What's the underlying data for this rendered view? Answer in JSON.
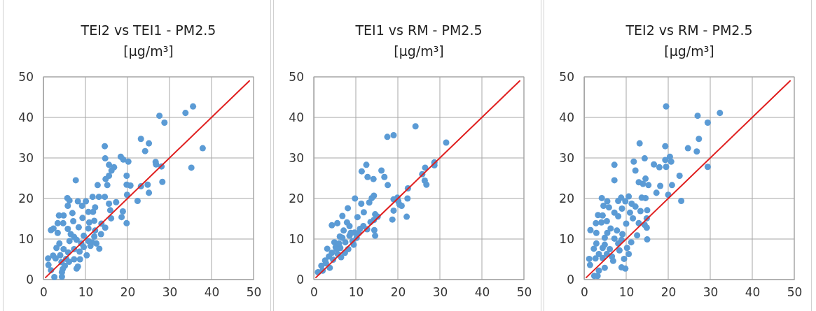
{
  "chart_data": [
    {
      "type": "scatter",
      "title": "TEI2 vs TEI1 - PM2.5",
      "subtitle": "[µg/m³]",
      "xlim": [
        0,
        50
      ],
      "ylim": [
        0,
        50
      ],
      "xticks": [
        0,
        10,
        20,
        30,
        40,
        50
      ],
      "yticks": [
        0,
        10,
        20,
        30,
        40,
        50
      ],
      "grid": true,
      "series": [
        {
          "marker": "circle",
          "color": "#5b9bd5",
          "x": [
            35.6,
            33.8,
            27.6,
            28.8,
            23.2,
            25.1,
            24.2,
            37.9,
            14.6,
            14.7,
            18.4,
            19.0,
            20.2,
            26.7,
            26.8,
            28.1,
            35.2,
            15.6,
            16.8,
            16.2,
            15.6,
            14.8,
            19.8,
            7.7,
            28.3,
            19.8,
            20.7,
            15.2,
            12.9,
            23.2,
            24.8,
            25.1,
            19.9,
            22.4,
            17.3,
            15.6,
            13.2,
            14.6,
            11.7,
            5.7,
            6.2,
            8.2,
            10.1,
            9.2,
            5.8,
            12.3,
            15.9,
            18.9,
            10.7,
            11.8,
            6.9,
            3.7,
            4.8,
            9.3,
            16.1,
            18.6,
            19.8,
            3.4,
            4.7,
            10.9,
            12.1,
            13.8,
            7.1,
            1.8,
            2.4,
            5.8,
            8.4,
            10.7,
            12.3,
            14.7,
            3.4,
            6.5,
            13.7,
            7.3,
            9.6,
            12.1,
            6.2,
            7.9,
            10.7,
            9.0,
            12.6,
            3.8,
            9.6,
            11.2,
            13.3,
            3.1,
            4.8,
            7.3,
            8.6,
            5.9,
            2.3,
            4.0,
            1.1,
            2.9,
            5.4,
            7.3,
            8.7,
            4.3,
            6.1,
            1.2,
            5.1,
            8.2,
            7.9,
            4.6,
            4.4,
            2.6,
            4.4,
            1.8,
            10.3,
            11.6
          ],
          "values": [
            42.7,
            41.1,
            40.4,
            38.7,
            34.7,
            33.6,
            31.7,
            32.4,
            32.9,
            29.9,
            30.3,
            29.6,
            29.1,
            29.0,
            28.4,
            27.9,
            27.6,
            28.3,
            27.7,
            26.9,
            25.6,
            24.8,
            25.6,
            24.5,
            24.1,
            23.4,
            23.2,
            23.3,
            23.3,
            23.0,
            23.4,
            21.4,
            20.9,
            19.4,
            19.1,
            18.7,
            20.4,
            20.4,
            20.4,
            20.1,
            19.5,
            19.3,
            19.3,
            18.2,
            18.2,
            17.8,
            17.1,
            16.8,
            16.7,
            16.7,
            16.4,
            15.8,
            15.8,
            15.2,
            15.1,
            15.4,
            13.9,
            13.9,
            13.9,
            14.1,
            14.5,
            13.8,
            14.4,
            12.2,
            12.6,
            12.5,
            12.9,
            12.6,
            12.1,
            12.8,
            11.5,
            11.2,
            11.2,
            10.5,
            10.8,
            10.6,
            9.5,
            9.8,
            9.5,
            8.9,
            8.9,
            8.9,
            8.0,
            8.3,
            7.6,
            7.8,
            7.5,
            7.5,
            6.9,
            6.7,
            5.9,
            6.0,
            5.2,
            5.2,
            5.1,
            5.0,
            5.0,
            4.3,
            4.4,
            3.6,
            3.4,
            3.2,
            2.7,
            2.6,
            1.8,
            0.6,
            0.7,
            2.3,
            6.0,
            9.2
          ]
        },
        {
          "type": "line",
          "color": "#e02020",
          "x": [
            0.5,
            49
          ],
          "values": [
            0.5,
            49
          ]
        }
      ]
    },
    {
      "type": "scatter",
      "title": "TEI1 vs RM - PM2.5",
      "subtitle": "[µg/m³]",
      "xlim": [
        0,
        50
      ],
      "ylim": [
        0,
        50
      ],
      "xticks": [
        0,
        10,
        20,
        30,
        40,
        50
      ],
      "yticks": [
        0,
        10,
        20,
        30,
        40,
        50
      ],
      "grid": true,
      "series": [
        {
          "marker": "circle",
          "color": "#5b9bd5",
          "x": [
            24.2,
            17.5,
            19.0,
            31.5,
            28.7,
            28.7,
            26.5,
            25.8,
            26.4,
            26.8,
            12.5,
            11.4,
            16.1,
            16.8,
            12.8,
            14.2,
            17.6,
            22.4,
            14.3,
            13.8,
            9.8,
            13.2,
            11.3,
            19.0,
            19.9,
            20.1,
            20.4,
            20.9,
            22.3,
            19.0,
            18.7,
            22.1,
            8.1,
            11.9,
            10.4,
            6.8,
            14.6,
            14.3,
            5.6,
            4.3,
            7.9,
            8.5,
            12.7,
            14.4,
            14.6,
            11.0,
            9.7,
            7.1,
            6.2,
            8.5,
            10.2,
            4.9,
            7.5,
            9.5,
            3.2,
            6.3,
            8.2,
            4.3,
            5.7,
            7.4,
            3.6,
            6.5,
            2.7,
            4.6,
            3.8,
            1.8,
            1.0,
            2.1,
            2.9,
            5.2,
            9.2,
            10.7,
            11.8,
            13.5,
            15.2,
            6.8,
            5.4,
            8.8,
            6.0
          ],
          "values": [
            37.8,
            35.2,
            35.6,
            33.8,
            28.9,
            28.2,
            27.6,
            26.0,
            24.4,
            23.4,
            28.3,
            26.7,
            26.9,
            25.3,
            25.3,
            24.8,
            23.3,
            22.5,
            20.7,
            20.1,
            20.0,
            19.0,
            18.7,
            19.8,
            20.2,
            19.3,
            18.5,
            18.2,
            20.0,
            17.0,
            14.8,
            15.5,
            17.6,
            16.6,
            15.4,
            15.7,
            16.1,
            14.7,
            13.9,
            13.4,
            14.1,
            13.2,
            12.4,
            12.2,
            10.8,
            12.5,
            11.6,
            12.1,
            10.6,
            10.8,
            10.3,
            9.2,
            9.2,
            8.6,
            7.6,
            7.8,
            7.5,
            6.6,
            6.3,
            6.6,
            5.7,
            5.5,
            4.7,
            4.9,
            2.9,
            3.4,
            1.8,
            2.2,
            4.0,
            8.0,
            9.5,
            11.5,
            13.2,
            14.2,
            15.5,
            10.3,
            7.5,
            11.5,
            8.9
          ]
        },
        {
          "type": "line",
          "color": "#e02020",
          "x": [
            0.5,
            49
          ],
          "values": [
            0.5,
            49
          ]
        }
      ]
    },
    {
      "type": "scatter",
      "title": "TEI2 vs RM - PM2.5",
      "subtitle": "[µg/m³]",
      "xlim": [
        0,
        50
      ],
      "ylim": [
        0,
        50
      ],
      "xticks": [
        0,
        10,
        20,
        30,
        40,
        50
      ],
      "yticks": [
        0,
        10,
        20,
        30,
        40,
        50
      ],
      "grid": true,
      "series": [
        {
          "marker": "circle",
          "color": "#5b9bd5",
          "x": [
            19.5,
            32.3,
            27.0,
            29.4,
            27.3,
            13.2,
            24.7,
            19.3,
            26.8,
            20.4,
            19.3,
            20.7,
            14.4,
            11.8,
            7.2,
            16.6,
            17.9,
            19.5,
            29.4,
            12.2,
            22.7,
            7.2,
            14.6,
            13.0,
            14.0,
            15.3,
            18.1,
            20.9,
            17.2,
            20.0,
            23.1,
            4.2,
            5.5,
            8.8,
            10.6,
            13.7,
            14.6,
            8.1,
            9.8,
            11.3,
            12.2,
            4.6,
            5.9,
            9.0,
            13.4,
            15.0,
            7.2,
            10.9,
            3.3,
            4.4,
            8.1,
            11.6,
            14.9,
            2.8,
            4.1,
            5.4,
            10.0,
            13.0,
            14.4,
            14.9,
            1.5,
            6.3,
            7.8,
            9.1,
            2.9,
            5.5,
            12.6,
            4.9,
            7.2,
            8.9,
            15.0,
            11.2,
            2.9,
            4.9,
            8.1,
            10.2,
            2.3,
            4.4,
            6.1,
            8.4,
            3.5,
            5.4,
            6.6,
            1.2,
            2.7,
            4.4,
            6.9,
            9.5,
            4.9,
            8.9,
            9.8,
            1.4,
            3.5,
            2.4,
            3.2,
            10.6
          ],
          "values": [
            42.7,
            41.1,
            40.4,
            38.7,
            34.7,
            33.6,
            32.4,
            32.9,
            31.6,
            30.3,
            29.5,
            29.1,
            29.9,
            29.1,
            28.3,
            28.4,
            27.7,
            27.8,
            27.8,
            26.9,
            25.6,
            24.5,
            24.9,
            24.0,
            23.6,
            23.3,
            23.1,
            23.3,
            21.4,
            20.9,
            19.4,
            20.1,
            19.3,
            20.2,
            20.5,
            20.2,
            20.1,
            19.4,
            19.3,
            18.7,
            18.0,
            18.2,
            17.8,
            17.5,
            16.9,
            17.1,
            16.5,
            16.5,
            15.9,
            15.8,
            15.6,
            15.1,
            15.1,
            13.9,
            14.1,
            14.4,
            13.8,
            13.9,
            13.5,
            12.8,
            12.2,
            12.6,
            12.1,
            11.2,
            11.5,
            11.5,
            10.9,
            10.3,
            10.1,
            9.8,
            9.9,
            9.2,
            8.9,
            8.6,
            8.9,
            7.8,
            7.6,
            7.8,
            7.5,
            7.2,
            6.3,
            6.3,
            5.7,
            5.1,
            5.2,
            5.3,
            4.6,
            5.1,
            2.9,
            3.0,
            2.7,
            3.6,
            2.2,
            0.9,
            0.9,
            6.3
          ]
        },
        {
          "type": "line",
          "color": "#e02020",
          "x": [
            0.5,
            49
          ],
          "values": [
            0.5,
            49
          ]
        }
      ]
    }
  ]
}
